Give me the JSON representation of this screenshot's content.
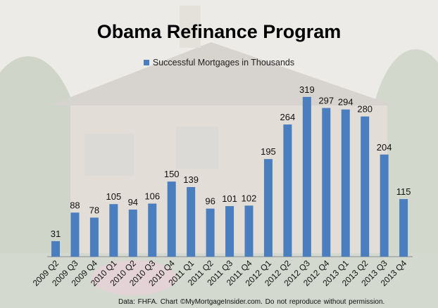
{
  "chart_data": {
    "type": "bar",
    "title": "Obama Refinance Program",
    "legend": [
      "Successful Mortgages in Thousands"
    ],
    "legend_position": "top",
    "categories": [
      "2009 Q2",
      "2009 Q3",
      "2009 Q4",
      "2010 Q1",
      "2010 Q2",
      "2010 Q3",
      "2010 Q4",
      "2011 Q1",
      "2011 Q2",
      "2011 Q3",
      "2011 Q4",
      "2012 Q1",
      "2012 Q2",
      "2012 Q3",
      "2012 Q4",
      "2013 Q1",
      "2013 Q2",
      "2013 Q3",
      "2013 Q4"
    ],
    "series": [
      {
        "name": "Successful Mortgages in Thousands",
        "values": [
          31,
          88,
          78,
          105,
          94,
          106,
          150,
          139,
          96,
          101,
          102,
          195,
          264,
          319,
          297,
          294,
          280,
          204,
          115
        ],
        "color": "#4a7ebf"
      }
    ],
    "data_labels": true,
    "grid": false,
    "ylim": [
      0,
      340
    ]
  },
  "footer": "Data: FHFA. Chart ©MyMortgageInsider.com.  Do not reproduce  without  permission."
}
